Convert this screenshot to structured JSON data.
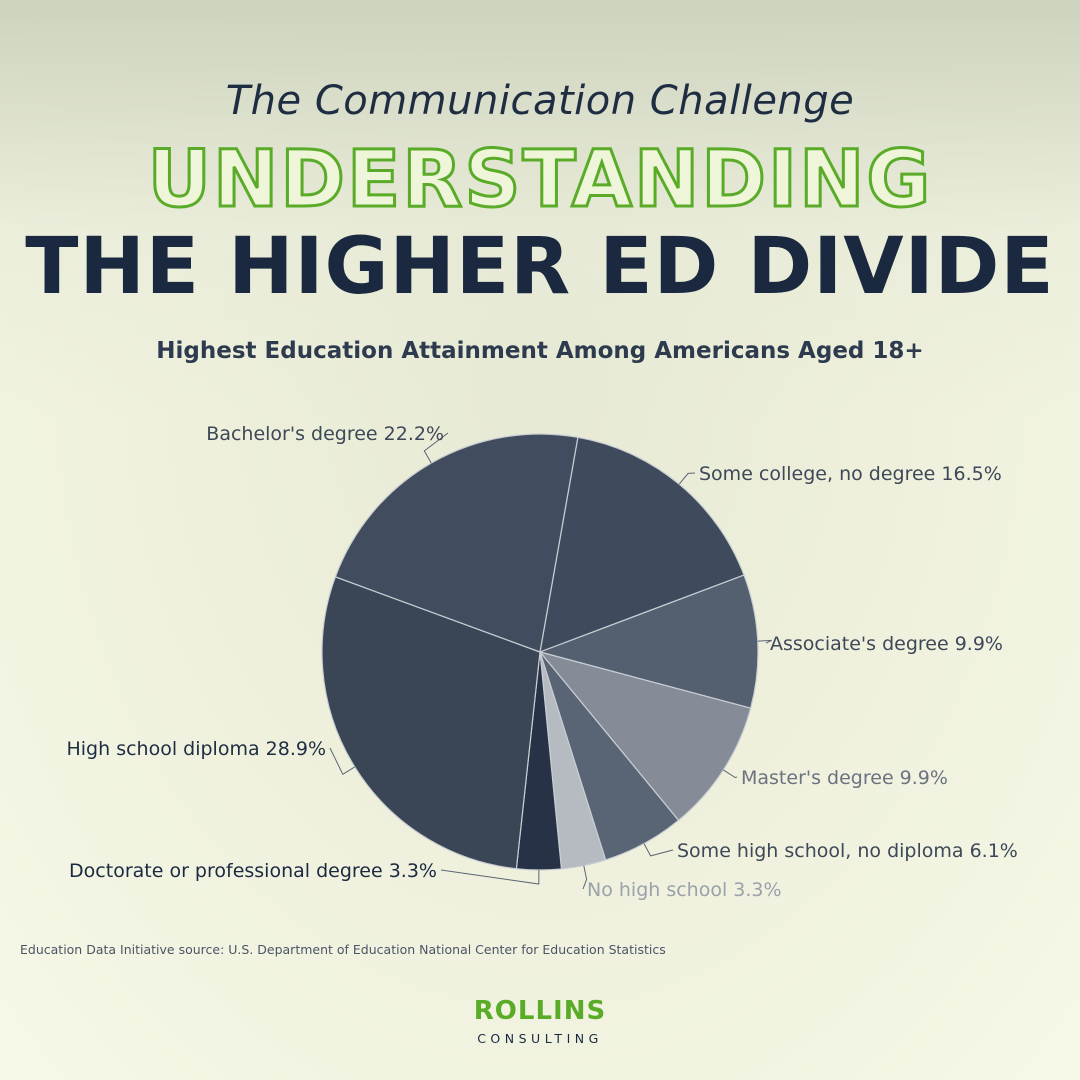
{
  "header": {
    "kicker": "The Communication Challenge",
    "headline_outline": "UNDERSTANDING",
    "headline_solid": "THE HIGHER ED DIVIDE"
  },
  "chart_data": {
    "type": "pie",
    "title": "Highest Education Attainment Among Americans Aged 18+",
    "slices": [
      {
        "label": "Some college, no degree",
        "value": 16.5,
        "text": "Some college, no degree 16.5%",
        "color": "#3f4b5c"
      },
      {
        "label": "Associate's degree",
        "value": 9.9,
        "text": "Associate's degree 9.9%",
        "color": "#545f70"
      },
      {
        "label": "Master's degree",
        "value": 9.9,
        "text": "Master's degree 9.9%",
        "color": "#858c98"
      },
      {
        "label": "Some high school, no diploma",
        "value": 6.1,
        "text": "Some high school, no diploma 6.1%",
        "color": "#596475"
      },
      {
        "label": "No high school",
        "value": 3.3,
        "text": "No high school 3.3%",
        "color": "#b6bbc2"
      },
      {
        "label": "Doctorate or professional degree",
        "value": 3.3,
        "text": "Doctorate or professional degree 3.3%",
        "color": "#273246"
      },
      {
        "label": "High school diploma",
        "value": 28.9,
        "text": "High school diploma 28.9%",
        "color": "#3a4556"
      },
      {
        "label": "Bachelor's degree",
        "value": 22.2,
        "text": "Bachelor's degree 22.2%",
        "color": "#414d5e"
      }
    ],
    "label_colors": {
      "default": "#3d4858",
      "No high school": "#9aa1ab",
      "Master's degree": "#6b7280",
      "Doctorate or professional degree": "#1b2940",
      "High school diploma": "#1f2d42"
    },
    "source": "Education Data Initiative source: U.S. Department of Education National Center for Education Statistics"
  },
  "brand": {
    "name": "ROLLINS",
    "sub": "CONSULTING"
  }
}
